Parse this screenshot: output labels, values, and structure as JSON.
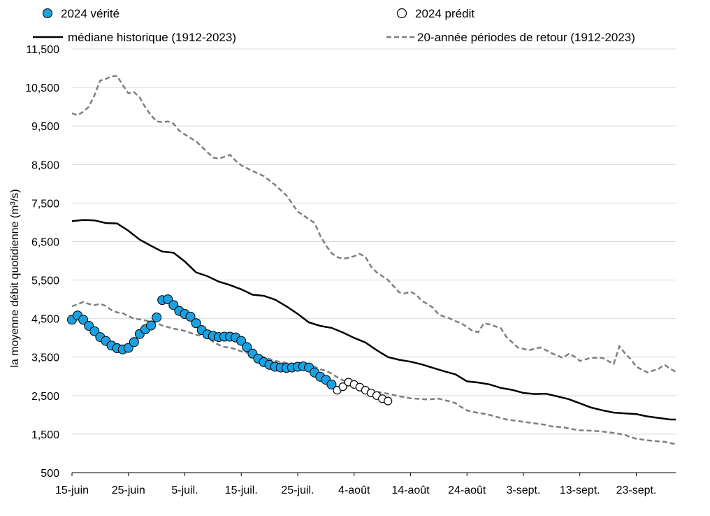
{
  "chart_data": {
    "type": "line",
    "ylabel": "la moyenne débit quotidienne (m³/s)",
    "ylim": [
      500,
      11500
    ],
    "yticks": [
      500,
      1500,
      2500,
      3500,
      4500,
      5500,
      6500,
      7500,
      8500,
      9500,
      10500,
      11500
    ],
    "ytick_labels": [
      "500",
      "1,500",
      "2,500",
      "3,500",
      "4,500",
      "5,500",
      "6,500",
      "7,500",
      "8,500",
      "9,500",
      "10,500",
      "11,500"
    ],
    "xlim": [
      "2024-06-15",
      "2024-09-30"
    ],
    "xticks": [
      "2024-06-15",
      "2024-06-25",
      "2024-07-05",
      "2024-07-15",
      "2024-07-25",
      "2024-08-04",
      "2024-08-14",
      "2024-08-24",
      "2024-09-03",
      "2024-09-13",
      "2024-09-23"
    ],
    "xtick_labels": [
      "15-juin",
      "25-juin",
      "5-juil.",
      "15-juil.",
      "25-juil.",
      "4-août",
      "14-août",
      "24-août",
      "3-sept.",
      "13-sept.",
      "23-sept."
    ],
    "grid": "horizontal",
    "legend": "top",
    "series": [
      {
        "name": "2024 vérité",
        "style": "filled-circle",
        "color": "#1BA1E2",
        "x": [
          "2024-06-15",
          "2024-06-16",
          "2024-06-17",
          "2024-06-18",
          "2024-06-19",
          "2024-06-20",
          "2024-06-21",
          "2024-06-22",
          "2024-06-23",
          "2024-06-24",
          "2024-06-25",
          "2024-06-26",
          "2024-06-27",
          "2024-06-28",
          "2024-06-29",
          "2024-06-30",
          "2024-07-01",
          "2024-07-02",
          "2024-07-03",
          "2024-07-04",
          "2024-07-05",
          "2024-07-06",
          "2024-07-07",
          "2024-07-08",
          "2024-07-09",
          "2024-07-10",
          "2024-07-11",
          "2024-07-12",
          "2024-07-13",
          "2024-07-14",
          "2024-07-15",
          "2024-07-16",
          "2024-07-17",
          "2024-07-18",
          "2024-07-19",
          "2024-07-20",
          "2024-07-21",
          "2024-07-22",
          "2024-07-23",
          "2024-07-24",
          "2024-07-25",
          "2024-07-26",
          "2024-07-27",
          "2024-07-28",
          "2024-07-29",
          "2024-07-30",
          "2024-07-31"
        ],
        "y": [
          4470,
          4580,
          4470,
          4310,
          4170,
          4020,
          3920,
          3800,
          3730,
          3700,
          3740,
          3890,
          4100,
          4220,
          4320,
          4530,
          4980,
          5000,
          4850,
          4700,
          4620,
          4550,
          4380,
          4200,
          4090,
          4050,
          4020,
          4030,
          4030,
          4010,
          3920,
          3760,
          3590,
          3460,
          3370,
          3300,
          3250,
          3230,
          3220,
          3230,
          3250,
          3260,
          3230,
          3100,
          2990,
          2910,
          2790
        ]
      },
      {
        "name": "2024 prédit",
        "style": "open-circle",
        "color": "#000000",
        "x": [
          "2024-08-01",
          "2024-08-02",
          "2024-08-03",
          "2024-08-04",
          "2024-08-05",
          "2024-08-06",
          "2024-08-07",
          "2024-08-08",
          "2024-08-09",
          "2024-08-10"
        ],
        "y": [
          2640,
          2730,
          2850,
          2790,
          2720,
          2640,
          2570,
          2500,
          2420,
          2360
        ]
      },
      {
        "name": "médiane historique (1912-2023)",
        "style": "solid",
        "color": "#000000",
        "x": [
          "2024-06-15",
          "2024-06-17",
          "2024-06-19",
          "2024-06-21",
          "2024-06-23",
          "2024-06-25",
          "2024-06-27",
          "2024-06-29",
          "2024-07-01",
          "2024-07-03",
          "2024-07-05",
          "2024-07-07",
          "2024-07-09",
          "2024-07-11",
          "2024-07-13",
          "2024-07-15",
          "2024-07-17",
          "2024-07-19",
          "2024-07-21",
          "2024-07-23",
          "2024-07-25",
          "2024-07-27",
          "2024-07-29",
          "2024-07-31",
          "2024-08-02",
          "2024-08-04",
          "2024-08-06",
          "2024-08-08",
          "2024-08-10",
          "2024-08-12",
          "2024-08-14",
          "2024-08-16",
          "2024-08-18",
          "2024-08-20",
          "2024-08-22",
          "2024-08-24",
          "2024-08-26",
          "2024-08-28",
          "2024-08-30",
          "2024-09-01",
          "2024-09-03",
          "2024-09-05",
          "2024-09-07",
          "2024-09-09",
          "2024-09-11",
          "2024-09-13",
          "2024-09-15",
          "2024-09-17",
          "2024-09-19",
          "2024-09-21",
          "2024-09-23",
          "2024-09-25",
          "2024-09-27",
          "2024-09-29",
          "2024-09-30"
        ],
        "y": [
          7030,
          7060,
          7050,
          6980,
          6970,
          6780,
          6550,
          6390,
          6240,
          6210,
          5980,
          5700,
          5600,
          5460,
          5370,
          5260,
          5120,
          5090,
          4990,
          4820,
          4620,
          4400,
          4310,
          4260,
          4140,
          4000,
          3880,
          3680,
          3500,
          3430,
          3380,
          3310,
          3220,
          3130,
          3050,
          2870,
          2840,
          2790,
          2700,
          2650,
          2570,
          2540,
          2550,
          2480,
          2410,
          2300,
          2190,
          2120,
          2060,
          2040,
          2020,
          1960,
          1920,
          1880,
          1880
        ]
      },
      {
        "name": "20-année périodes de retour (1912-2023)",
        "style": "dashed",
        "color": "#7F7F7F",
        "x": [
          "2024-06-15",
          "2024-06-16",
          "2024-06-17",
          "2024-06-18",
          "2024-06-19",
          "2024-06-20",
          "2024-06-21",
          "2024-06-22",
          "2024-06-23",
          "2024-06-24",
          "2024-06-25",
          "2024-06-26",
          "2024-06-27",
          "2024-06-28",
          "2024-06-29",
          "2024-06-30",
          "2024-07-01",
          "2024-07-02",
          "2024-07-03",
          "2024-07-04",
          "2024-07-05",
          "2024-07-07",
          "2024-07-09",
          "2024-07-10",
          "2024-07-11",
          "2024-07-12",
          "2024-07-13",
          "2024-07-14",
          "2024-07-15",
          "2024-07-17",
          "2024-07-19",
          "2024-07-21",
          "2024-07-23",
          "2024-07-25",
          "2024-07-27",
          "2024-07-28",
          "2024-07-29",
          "2024-07-30",
          "2024-07-31",
          "2024-08-01",
          "2024-08-02",
          "2024-08-03",
          "2024-08-04",
          "2024-08-05",
          "2024-08-06",
          "2024-08-07",
          "2024-08-08",
          "2024-08-10",
          "2024-08-12",
          "2024-08-13",
          "2024-08-14",
          "2024-08-15",
          "2024-08-16",
          "2024-08-17",
          "2024-08-18",
          "2024-08-19",
          "2024-08-20",
          "2024-08-21",
          "2024-08-22",
          "2024-08-23",
          "2024-08-24",
          "2024-08-25",
          "2024-08-26",
          "2024-08-27",
          "2024-08-28",
          "2024-08-29",
          "2024-08-30",
          "2024-08-31",
          "2024-09-02",
          "2024-09-04",
          "2024-09-06",
          "2024-09-07",
          "2024-09-08",
          "2024-09-10",
          "2024-09-11",
          "2024-09-12",
          "2024-09-13",
          "2024-09-15",
          "2024-09-17",
          "2024-09-19",
          "2024-09-20",
          "2024-09-21",
          "2024-09-22",
          "2024-09-23",
          "2024-09-25",
          "2024-09-27",
          "2024-09-28",
          "2024-09-29",
          "2024-09-30"
        ],
        "y_upper": [
          9830,
          9780,
          9870,
          10000,
          10300,
          10680,
          10720,
          10790,
          10800,
          10560,
          10350,
          10380,
          10240,
          9980,
          9780,
          9620,
          9600,
          9620,
          9560,
          9380,
          9280,
          9100,
          8820,
          8680,
          8650,
          8700,
          8750,
          8600,
          8480,
          8330,
          8200,
          7970,
          7700,
          7280,
          7080,
          6980,
          6650,
          6400,
          6200,
          6100,
          6050,
          6080,
          6120,
          6180,
          6100,
          5850,
          5700,
          5500,
          5180,
          5150,
          5200,
          5120,
          4960,
          4880,
          4780,
          4600,
          4550,
          4500,
          4430,
          4380,
          4280,
          4180,
          4150,
          4380,
          4350,
          4300,
          4250,
          4020,
          3750,
          3680,
          3750,
          3680,
          3600,
          3480,
          3580,
          3520,
          3400,
          3480,
          3480,
          3320,
          3780,
          3600,
          3450,
          3250,
          3100,
          3200,
          3300,
          3200,
          3120
        ],
        "y_lower": [
          4820,
          4870,
          4930,
          4880,
          4850,
          4880,
          4830,
          4720,
          4660,
          4640,
          4560,
          4500,
          4480,
          4450,
          4420,
          4380,
          4320,
          4280,
          4240,
          4210,
          4180,
          4080,
          4020,
          3900,
          3820,
          3760,
          3750,
          3700,
          3650,
          3580,
          3500,
          3400,
          3350,
          3300,
          3280,
          3250,
          3180,
          3150,
          3070,
          2980,
          2900,
          2850,
          2780,
          2740,
          2720,
          2650,
          2600,
          2550,
          2480,
          2460,
          2430,
          2420,
          2410,
          2400,
          2410,
          2420,
          2380,
          2350,
          2300,
          2200,
          2120,
          2080,
          2050,
          2030,
          2000,
          1960,
          1920,
          1880,
          1840,
          1800,
          1760,
          1740,
          1700,
          1680,
          1650,
          1620,
          1600,
          1590,
          1570,
          1530,
          1510,
          1480,
          1420,
          1380,
          1340,
          1310,
          1300,
          1270,
          1240
        ]
      }
    ]
  }
}
